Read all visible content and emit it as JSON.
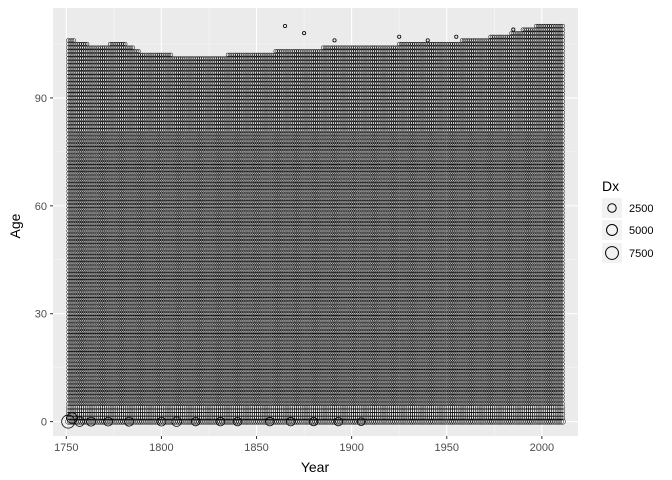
{
  "chart_data": {
    "type": "scatter",
    "xlabel": "Year",
    "ylabel": "Age",
    "xlim": [
      1743,
      2019
    ],
    "ylim": [
      -4,
      115
    ],
    "x_ticks": [
      1750,
      1800,
      1850,
      1900,
      1950,
      2000
    ],
    "y_ticks": [
      0,
      30,
      60,
      90
    ],
    "x_tick_labels": [
      "1750",
      "1800",
      "1850",
      "1900",
      "1950",
      "2000"
    ],
    "y_tick_labels": [
      "0",
      "30",
      "60",
      "90"
    ],
    "grid": true,
    "panel_background": "#ebebeb",
    "point_stroke": "#000000",
    "legend": {
      "title": "Dx",
      "position": "right",
      "entries": [
        {
          "label": "2500",
          "value": 2500
        },
        {
          "label": "5000",
          "value": 5000
        },
        {
          "label": "7500",
          "value": 7500
        }
      ]
    },
    "year_range": [
      1751,
      2011
    ],
    "age_range": [
      0,
      110
    ],
    "max_age_by_year": [
      [
        1751,
        106
      ],
      [
        1765,
        104
      ],
      [
        1780,
        105
      ],
      [
        1790,
        102
      ],
      [
        1820,
        101
      ],
      [
        1850,
        102
      ],
      [
        1870,
        103
      ],
      [
        1900,
        104
      ],
      [
        1950,
        105
      ],
      [
        1980,
        107
      ],
      [
        2000,
        110
      ],
      [
        2011,
        110
      ]
    ],
    "notable_points": [
      {
        "x": 1751,
        "y": 0,
        "dx": 7800
      },
      {
        "x": 1753,
        "y": 1,
        "dx": 4500
      },
      {
        "x": 1757,
        "y": 0,
        "dx": 3500
      },
      {
        "x": 1763,
        "y": 0,
        "dx": 3000
      },
      {
        "x": 1772,
        "y": 0,
        "dx": 2800
      },
      {
        "x": 1783,
        "y": 0,
        "dx": 3000
      },
      {
        "x": 1800,
        "y": 0,
        "dx": 2800
      },
      {
        "x": 1808,
        "y": 0,
        "dx": 3500
      },
      {
        "x": 1818,
        "y": 0,
        "dx": 2500
      },
      {
        "x": 1831,
        "y": 0,
        "dx": 2600
      },
      {
        "x": 1840,
        "y": 0,
        "dx": 2500
      },
      {
        "x": 1857,
        "y": 0,
        "dx": 2600
      },
      {
        "x": 1868,
        "y": 0,
        "dx": 2600
      },
      {
        "x": 1880,
        "y": 0,
        "dx": 2400
      },
      {
        "x": 1893,
        "y": 0,
        "dx": 2500
      },
      {
        "x": 1905,
        "y": 0,
        "dx": 2000
      },
      {
        "x": 1865,
        "y": 110,
        "dx": 50
      },
      {
        "x": 1875,
        "y": 108,
        "dx": 50
      },
      {
        "x": 1891,
        "y": 106,
        "dx": 50
      },
      {
        "x": 1925,
        "y": 107,
        "dx": 50
      },
      {
        "x": 1940,
        "y": 106,
        "dx": 50
      },
      {
        "x": 1955,
        "y": 107,
        "dx": 50
      },
      {
        "x": 1985,
        "y": 109,
        "dx": 50
      }
    ]
  }
}
